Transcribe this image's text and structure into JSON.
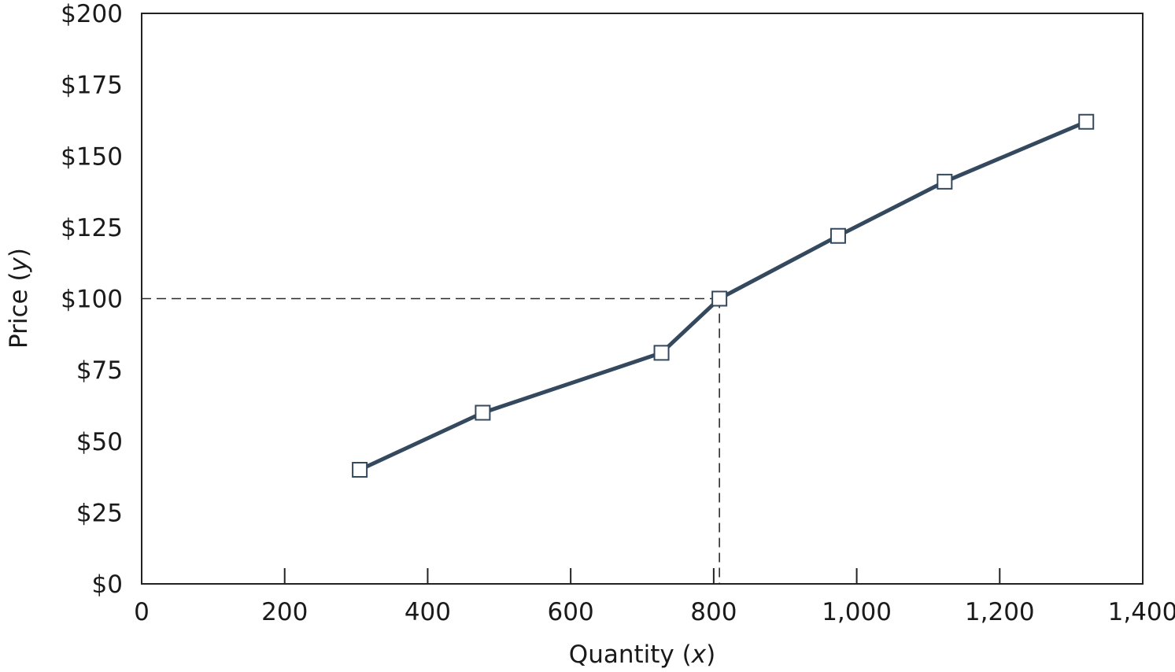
{
  "chart_data": {
    "type": "line",
    "xlabel": "Quantity",
    "xlabel_var": "x",
    "ylabel": "Price",
    "ylabel_var": "y",
    "xlim": [
      0,
      1400
    ],
    "ylim": [
      0,
      200
    ],
    "x_ticks": [
      0,
      200,
      400,
      600,
      800,
      1000,
      1200,
      1400
    ],
    "x_tick_labels": [
      "0",
      "200",
      "400",
      "600",
      "800",
      "1,000",
      "1,200",
      "1,400"
    ],
    "y_ticks": [
      0,
      25,
      50,
      75,
      100,
      125,
      150,
      175,
      200
    ],
    "y_tick_labels": [
      "$0",
      "$25",
      "$50",
      "$75",
      "$100",
      "$125",
      "$150",
      "$175",
      "$200"
    ],
    "grid": false,
    "series": [
      {
        "color": "#34495e",
        "marker": "square",
        "x": [
          305,
          477,
          727,
          808,
          974,
          1123,
          1321
        ],
        "y": [
          40,
          60,
          81,
          100,
          122,
          141,
          162
        ]
      }
    ],
    "reference_point": {
      "x": 808,
      "y": 100,
      "style": "dashed"
    }
  }
}
